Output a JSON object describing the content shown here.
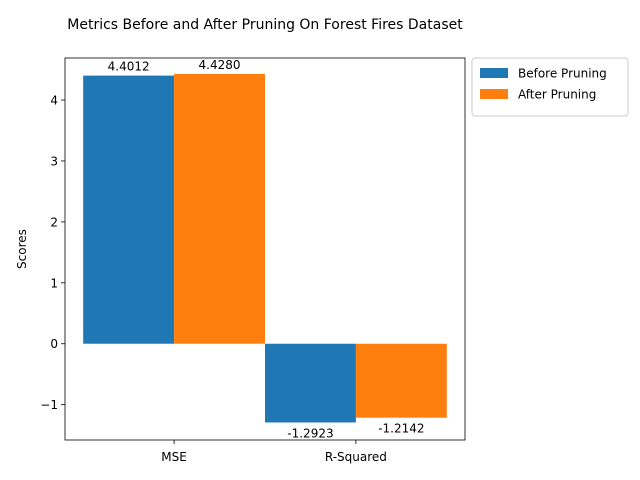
{
  "chart_data": {
    "type": "bar",
    "title": "Metrics Before and After Pruning On Forest Fires Dataset",
    "xlabel": "",
    "ylabel": "Scores",
    "categories": [
      "MSE",
      "R-Squared"
    ],
    "series": [
      {
        "name": "Before Pruning",
        "values": [
          4.4012,
          -1.2923
        ],
        "labels": [
          "4.4012",
          "-1.2923"
        ],
        "color": "#1f77b4"
      },
      {
        "name": "After Pruning",
        "values": [
          4.428,
          -1.2142
        ],
        "labels": [
          "4.4280",
          "-1.2142"
        ],
        "color": "#ff7f0e"
      }
    ],
    "ylim": [
      -1.58,
      4.69
    ],
    "yticks": [
      -1,
      0,
      1,
      2,
      3,
      4
    ],
    "ytick_labels": [
      "−1",
      "0",
      "1",
      "2",
      "3",
      "4"
    ],
    "grid": false,
    "legend_position": "outside upper right"
  }
}
